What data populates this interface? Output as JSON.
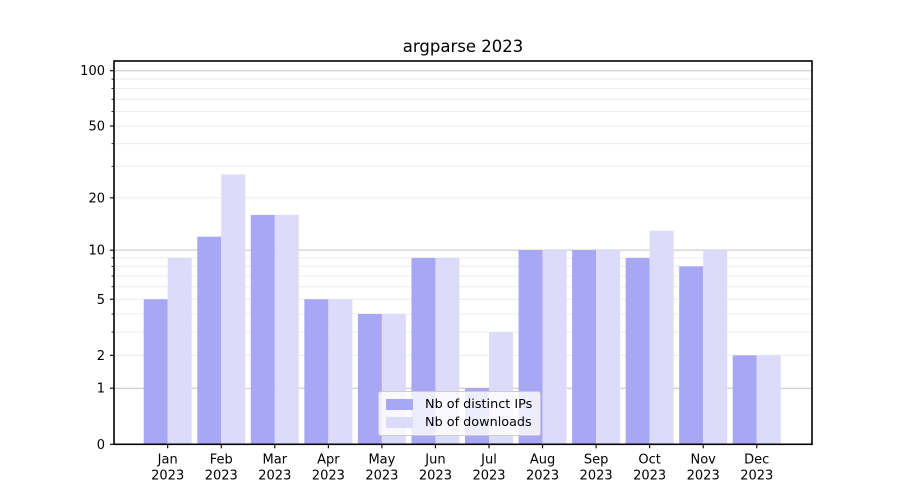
{
  "title": "argparse 2023",
  "chart_data": {
    "type": "bar",
    "title": "argparse 2023",
    "categories": [
      "Jan",
      "Feb",
      "Mar",
      "Apr",
      "May",
      "Jun",
      "Jul",
      "Aug",
      "Sep",
      "Oct",
      "Nov",
      "Dec"
    ],
    "year_label": "2023",
    "series": [
      {
        "name": "Nb of distinct IPs",
        "color": "#a7a7f5",
        "values": [
          5,
          12,
          16,
          5,
          4,
          9,
          1,
          10,
          10,
          9,
          8,
          2
        ]
      },
      {
        "name": "Nb of downloads",
        "color": "#dcdcfa",
        "values": [
          9,
          27,
          16,
          5,
          4,
          9,
          3,
          10,
          10,
          13,
          10,
          2
        ]
      }
    ],
    "yticks": [
      0,
      1,
      2,
      5,
      10,
      20,
      50,
      100
    ],
    "yminorticks": [
      3,
      4,
      6,
      7,
      8,
      9,
      30,
      40,
      60,
      70,
      80,
      90
    ],
    "ylim": [
      0,
      113
    ],
    "yscale": "log1p",
    "xlabel": "",
    "ylabel": "",
    "grid": "both",
    "legend_position": "inside lower-center-left",
    "colors": {
      "major_grid": "#c3c3c3",
      "minor_grid": "#ececec",
      "spine": "#000000",
      "background": "#ffffff"
    }
  }
}
